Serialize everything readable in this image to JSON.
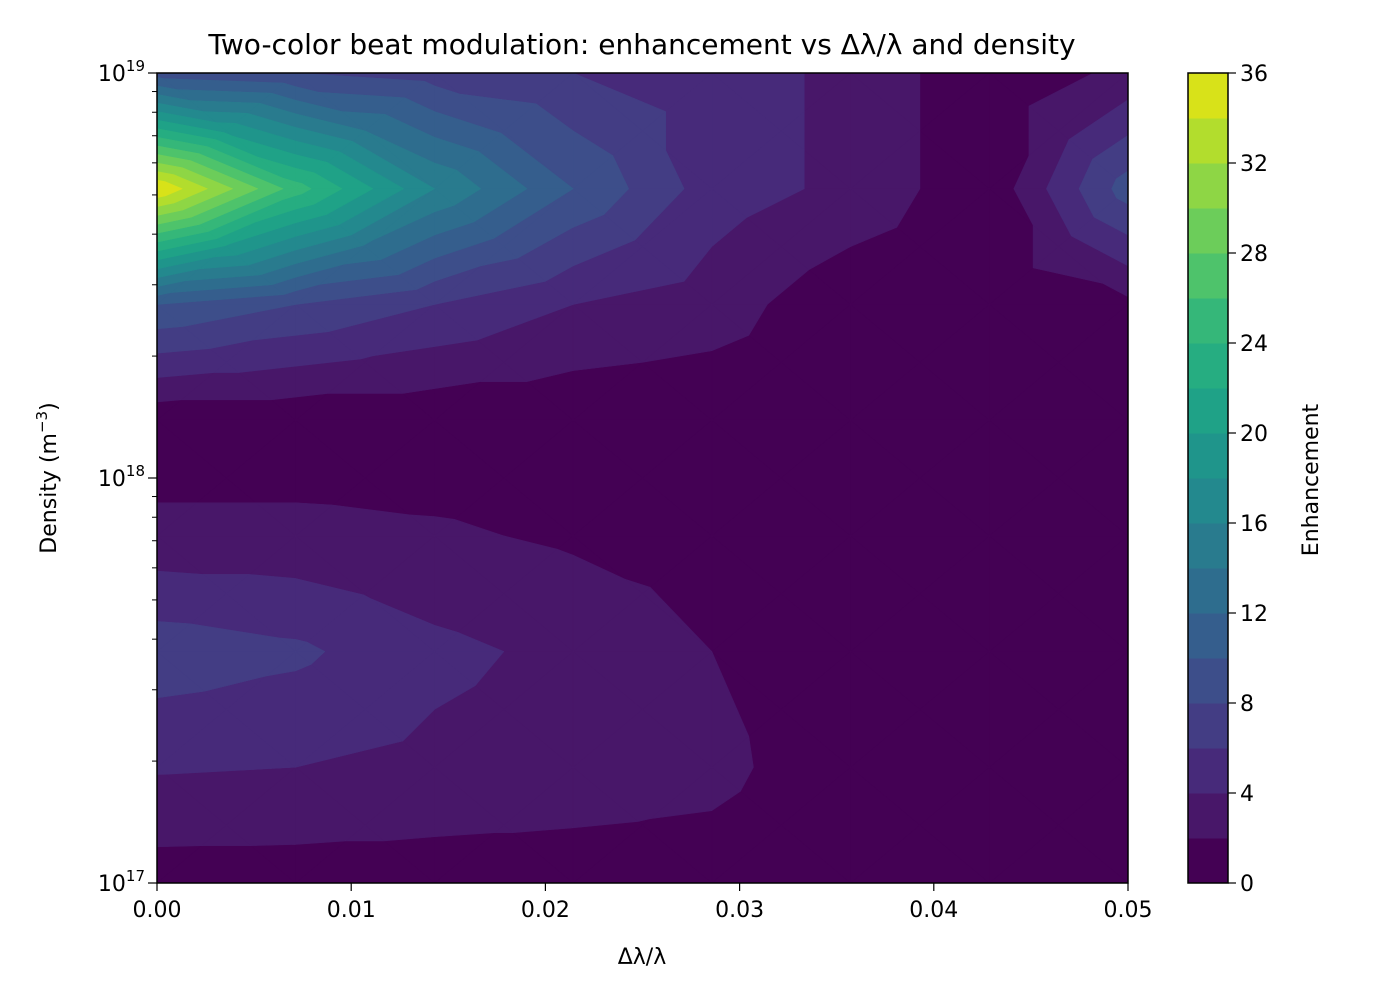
{
  "chart_data": {
    "type": "heatmap",
    "subtype": "filled-contour",
    "title": "Two-color beat modulation: enhancement vs Δλ/λ and density",
    "xlabel": "Δλ/λ",
    "ylabel_main": "Density (m",
    "ylabel_sup": "−3",
    "ylabel_close": ")",
    "colorbar_label": "Enhancement",
    "x_scale": "linear",
    "y_scale": "log",
    "xlim": [
      0.0,
      0.05
    ],
    "ylim": [
      1e+17,
      1e+19
    ],
    "x_ticks": [
      {
        "value": 0.0,
        "label": "0.00"
      },
      {
        "value": 0.01,
        "label": "0.01"
      },
      {
        "value": 0.02,
        "label": "0.02"
      },
      {
        "value": 0.03,
        "label": "0.03"
      },
      {
        "value": 0.04,
        "label": "0.04"
      },
      {
        "value": 0.05,
        "label": "0.05"
      }
    ],
    "y_ticks": [
      {
        "value": 1e+17,
        "base": "10",
        "exp": "17"
      },
      {
        "value": 1e+18,
        "base": "10",
        "exp": "18"
      },
      {
        "value": 1e+19,
        "base": "10",
        "exp": "19"
      }
    ],
    "colorbar_ticks": [
      {
        "value": 0,
        "label": "0"
      },
      {
        "value": 4,
        "label": "4"
      },
      {
        "value": 8,
        "label": "8"
      },
      {
        "value": 12,
        "label": "12"
      },
      {
        "value": 16,
        "label": "16"
      },
      {
        "value": 20,
        "label": "20"
      },
      {
        "value": 24,
        "label": "24"
      },
      {
        "value": 28,
        "label": "28"
      },
      {
        "value": 32,
        "label": "32"
      },
      {
        "value": 36,
        "label": "36"
      }
    ],
    "levels": [
      0,
      2,
      4,
      6,
      8,
      10,
      12,
      14,
      16,
      18,
      20,
      22,
      24,
      26,
      28,
      30,
      32,
      34,
      36
    ],
    "level_colors": [
      "#440154",
      "#481769",
      "#472a7a",
      "#433d84",
      "#3d4e8a",
      "#355e8d",
      "#2e6d8e",
      "#297b8e",
      "#23898e",
      "#1f958b",
      "#1fa287",
      "#26ad81",
      "#35b779",
      "#4ec36b",
      "#6ccd5a",
      "#8ed645",
      "#b2dd2d",
      "#d8e219",
      "#fde725"
    ],
    "grid_x": [
      0.0,
      0.00714,
      0.01429,
      0.02143,
      0.02857,
      0.03571,
      0.04286,
      0.05
    ],
    "grid_y": [
      1e+17,
      1.931e+17,
      3.728e+17,
      7.197e+17,
      1.389e+18,
      2.683e+18,
      5.179e+18,
      1e+19
    ],
    "z": [
      [
        1.0,
        1.0,
        1.0,
        1.0,
        1.0,
        0.4,
        0.4,
        0.4
      ],
      [
        4.2,
        4.0,
        3.5,
        3.1,
        2.6,
        0.6,
        0.5,
        0.5
      ],
      [
        7.2,
        6.4,
        4.5,
        3.5,
        2.0,
        0.7,
        0.5,
        0.5
      ],
      [
        2.6,
        2.6,
        2.3,
        1.7,
        1.2,
        0.5,
        0.5,
        0.5
      ],
      [
        0.5,
        0.5,
        0.5,
        0.5,
        0.5,
        0.5,
        0.5,
        0.5
      ],
      [
        10.0,
        8.0,
        6.0,
        4.0,
        3.0,
        0.5,
        0.5,
        1.5
      ],
      [
        36.0,
        25.0,
        16.0,
        10.0,
        5.0,
        3.5,
        0.5,
        9.0
      ],
      [
        9.0,
        8.0,
        7.0,
        6.0,
        5.0,
        3.5,
        0.5,
        2.5
      ]
    ]
  }
}
